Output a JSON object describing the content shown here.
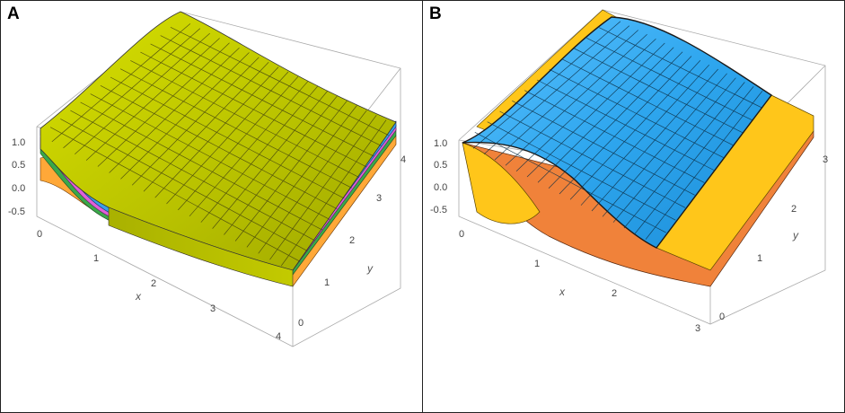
{
  "figure": {
    "panels": [
      {
        "label": "A",
        "x_axis": {
          "name": "x",
          "ticks": [
            "0",
            "1",
            "2",
            "3",
            "4"
          ]
        },
        "y_axis": {
          "name": "y",
          "ticks": [
            "0",
            "1",
            "2",
            "3",
            "4"
          ]
        },
        "z_axis": {
          "ticks": [
            "1.0",
            "0.5",
            "0.0",
            "-0.5"
          ]
        },
        "surface_colors": [
          "#c8d400",
          "#3a9ee8",
          "#e060d8",
          "#3aa84a",
          "#ffb030"
        ]
      },
      {
        "label": "B",
        "x_axis": {
          "name": "x",
          "ticks": [
            "0",
            "1",
            "2",
            "3"
          ]
        },
        "y_axis": {
          "name": "y",
          "ticks": [
            "0",
            "1",
            "2",
            "3"
          ]
        },
        "z_axis": {
          "ticks": [
            "1.0",
            "0.5",
            "0.0",
            "-0.5"
          ]
        },
        "surface_colors": [
          "#2fa8f0",
          "#ffc61a",
          "#f07a30",
          "#e070e0"
        ]
      }
    ]
  }
}
